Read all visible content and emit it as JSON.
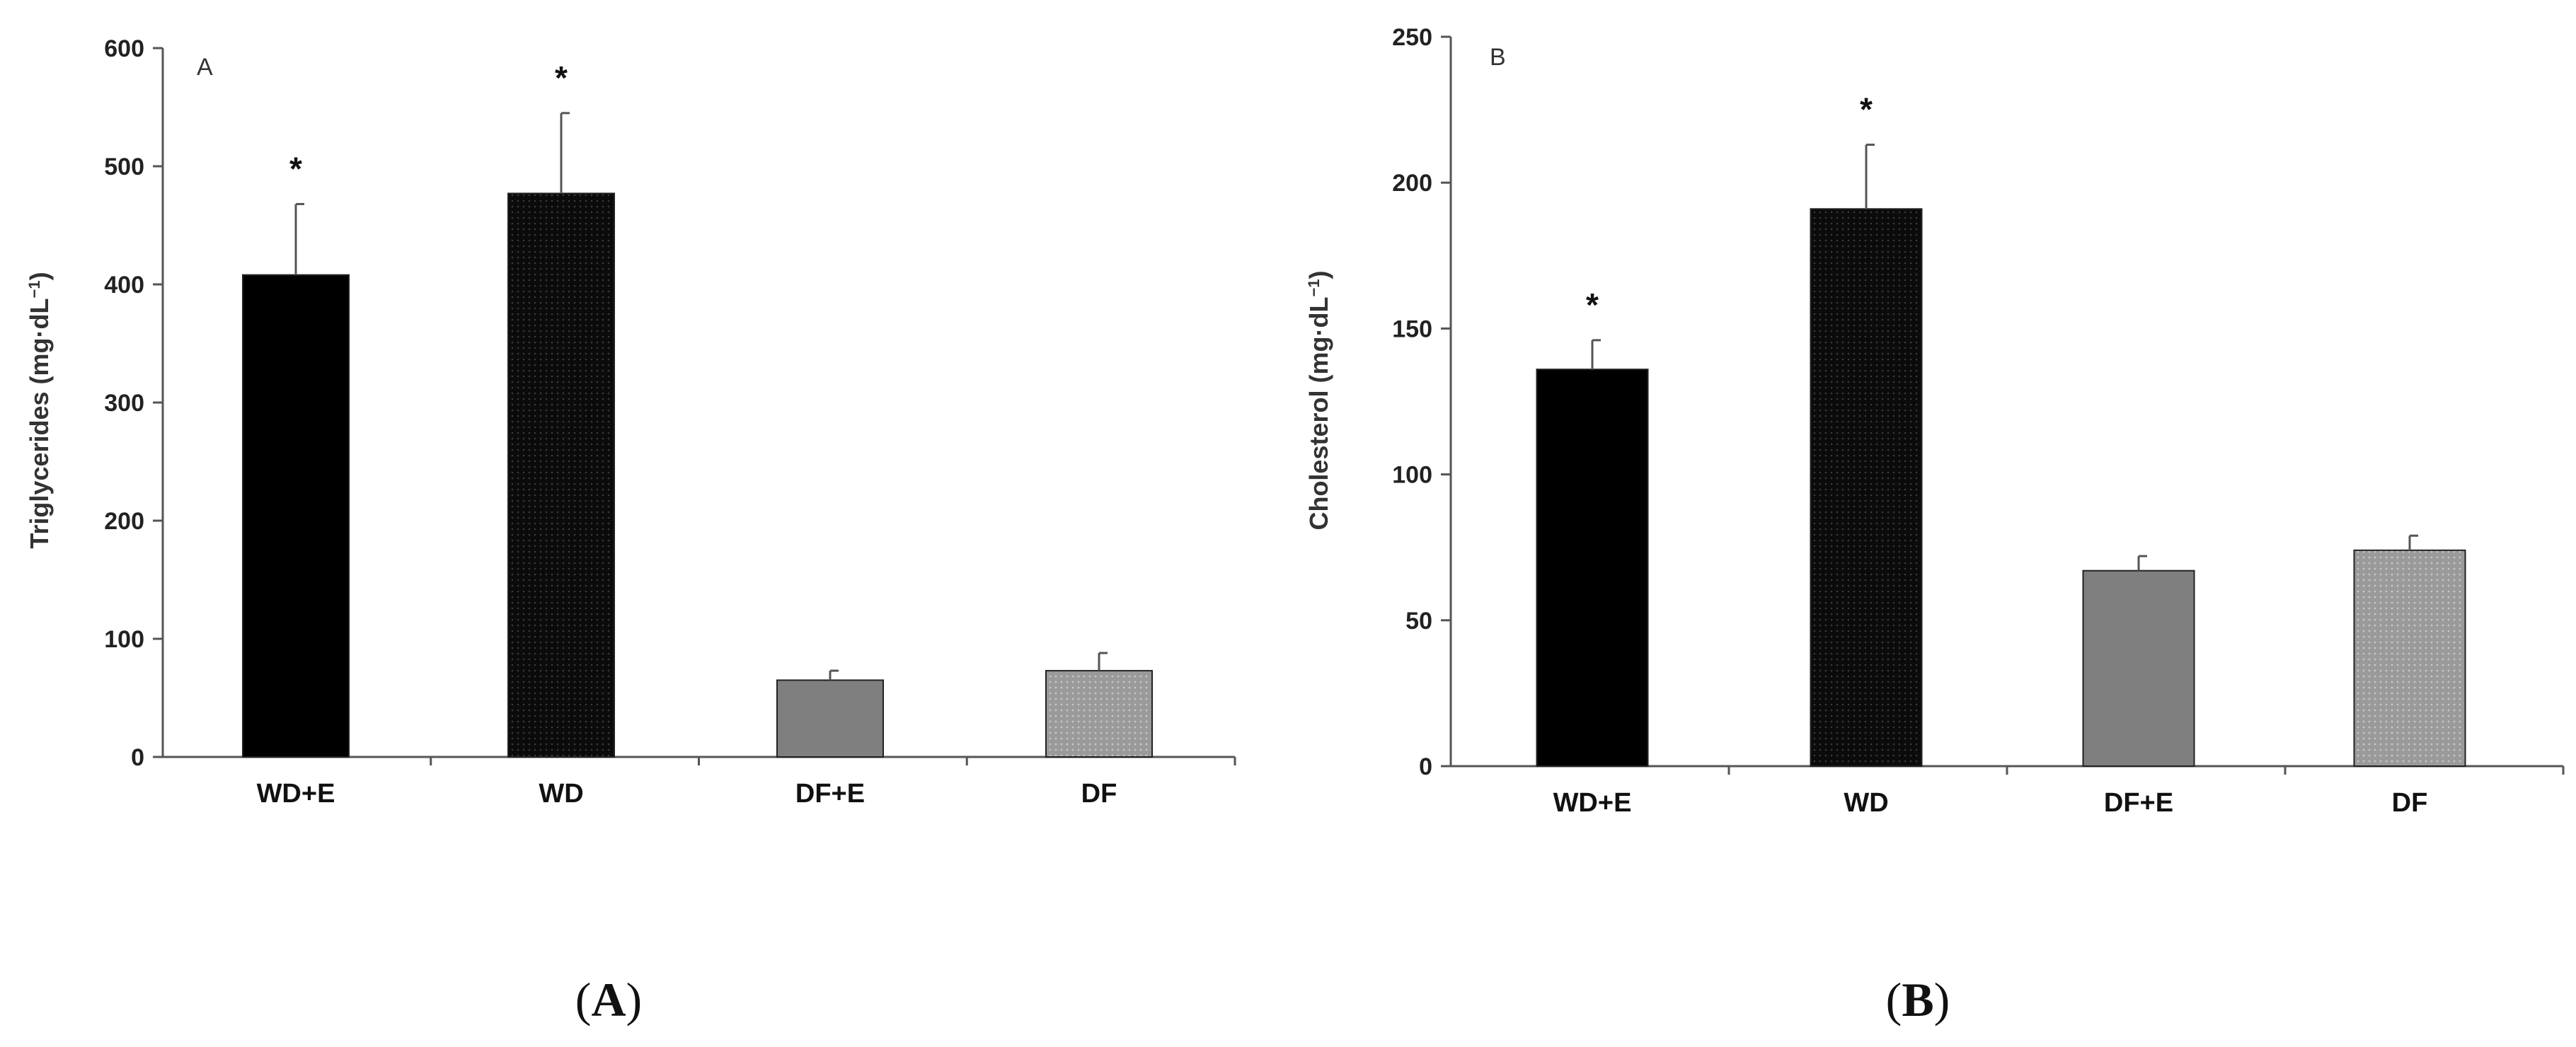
{
  "chart_data": [
    {
      "type": "bar",
      "panel_letter": "A",
      "caption_open": "(",
      "caption_letter": "A",
      "caption_close": ")",
      "ylabel_main": "Triglycerides (mg·dL",
      "ylabel_sup": "−1",
      "ylabel_close": ")",
      "ylim": [
        0,
        600
      ],
      "yticks": [
        0,
        100,
        200,
        300,
        400,
        500,
        600
      ],
      "categories": [
        "WD+E",
        "WD",
        "DF+E",
        "DF"
      ],
      "values": [
        408,
        477,
        65,
        73
      ],
      "errors": [
        60,
        68,
        8,
        15
      ],
      "significance": [
        "*",
        "*",
        "",
        ""
      ],
      "bar_colors": [
        "#000000",
        "#141414",
        "#7f7f7f",
        "#909090"
      ]
    },
    {
      "type": "bar",
      "panel_letter": "B",
      "caption_open": "(",
      "caption_letter": "B",
      "caption_close": ")",
      "ylabel_main": "Cholesterol (mg·dL",
      "ylabel_sup": "−1",
      "ylabel_close": ")",
      "ylim": [
        0,
        250
      ],
      "yticks": [
        0,
        50,
        100,
        150,
        200,
        250
      ],
      "categories": [
        "WD+E",
        "WD",
        "DF+E",
        "DF"
      ],
      "values": [
        136,
        191,
        67,
        74
      ],
      "errors": [
        10,
        22,
        5,
        5
      ],
      "significance": [
        "*",
        "*",
        "",
        ""
      ],
      "bar_colors": [
        "#000000",
        "#141414",
        "#7f7f7f",
        "#a0a0a0"
      ]
    }
  ]
}
